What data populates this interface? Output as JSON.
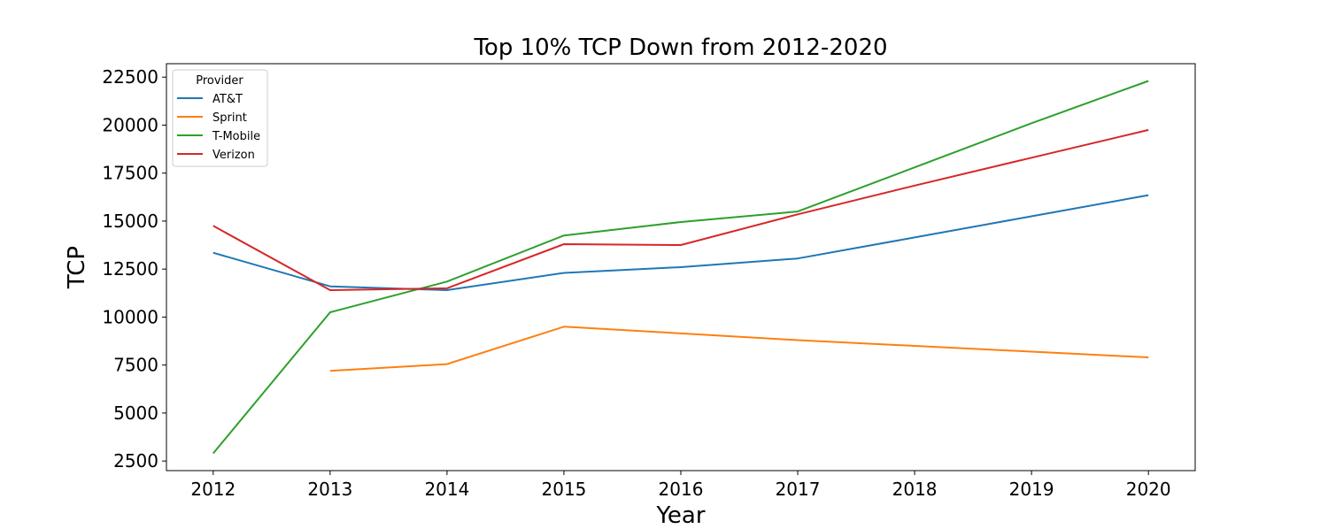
{
  "chart_data": {
    "type": "line",
    "title": "Top 10% TCP Down from 2012-2020",
    "xlabel": "Year",
    "ylabel": "TCP",
    "x": [
      2012,
      2013,
      2014,
      2015,
      2016,
      2017,
      2018,
      2019,
      2020
    ],
    "xlim": [
      2011.6,
      2020.4
    ],
    "ylim": [
      2000,
      23200
    ],
    "yticks": [
      2500,
      5000,
      7500,
      10000,
      12500,
      15000,
      17500,
      20000,
      22500
    ],
    "grid": false,
    "legend": {
      "title": "Provider",
      "placement": "top-left"
    },
    "series": [
      {
        "name": "AT&T",
        "color": "#1f77b4",
        "values": [
          13350,
          11600,
          11400,
          12300,
          12600,
          13050,
          14150,
          15250,
          16350
        ]
      },
      {
        "name": "Sprint",
        "color": "#ff7f0e",
        "values": [
          null,
          7200,
          7550,
          9500,
          9150,
          8800,
          8500,
          8200,
          7900
        ]
      },
      {
        "name": "T-Mobile",
        "color": "#2ca02c",
        "values": [
          2900,
          10250,
          11850,
          14250,
          14950,
          15500,
          17800,
          20100,
          22300
        ]
      },
      {
        "name": "Verizon",
        "color": "#d62728",
        "values": [
          14750,
          11400,
          11500,
          13800,
          13750,
          15350,
          16850,
          18300,
          19750
        ]
      }
    ]
  }
}
